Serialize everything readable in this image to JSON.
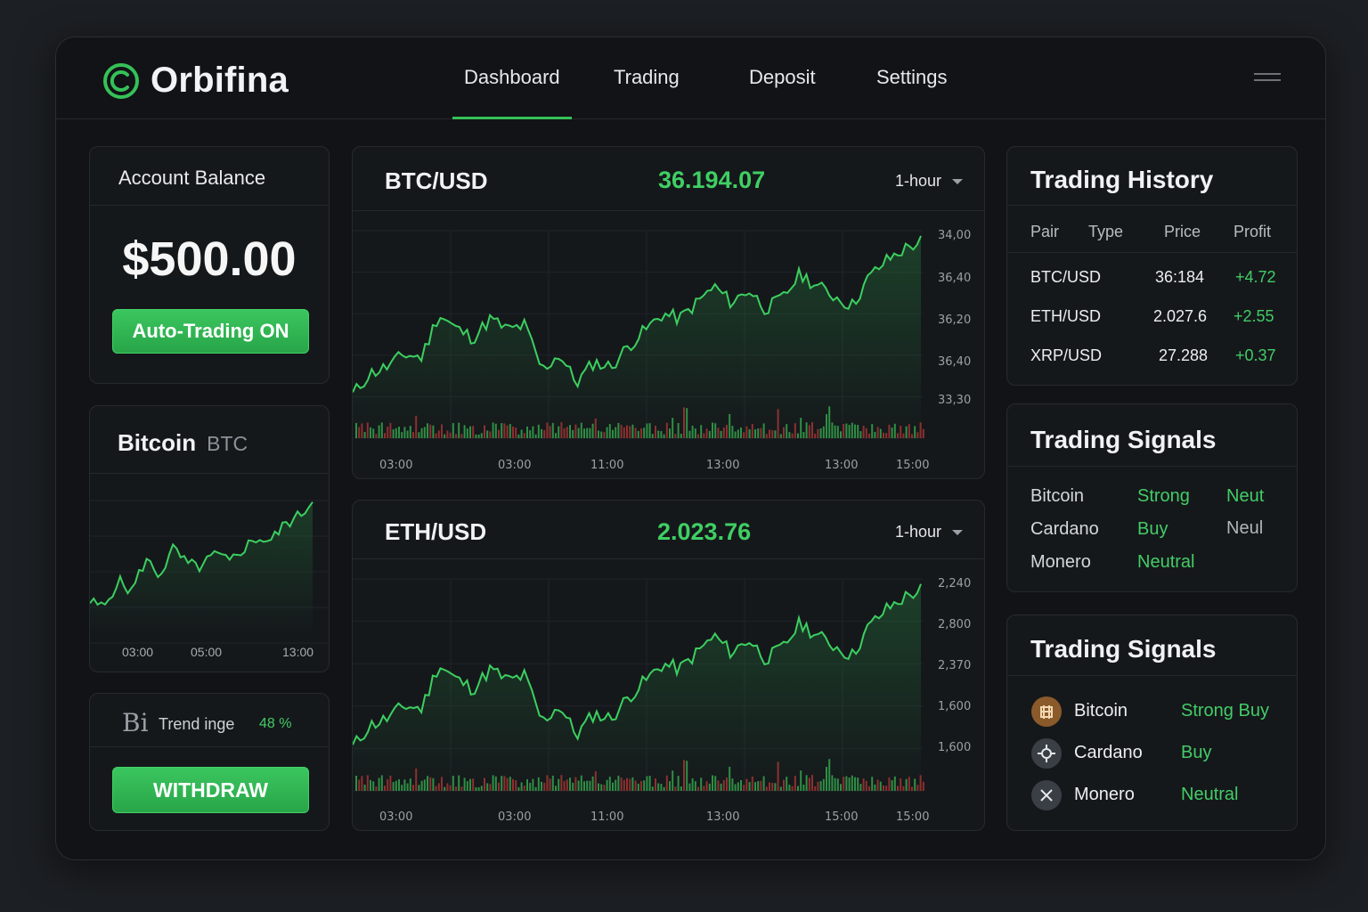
{
  "app": {
    "name": "Orbifina",
    "nav": [
      {
        "label": "Dashboard",
        "active": true
      },
      {
        "label": "Trading",
        "active": false
      },
      {
        "label": "Deposit",
        "active": false
      },
      {
        "label": "Settings",
        "active": false
      }
    ]
  },
  "account": {
    "title": "Account Balance",
    "balance": "$500.00",
    "auto_trading_label": "Auto-Trading ON"
  },
  "bitcoin_card": {
    "title": "Bitcoin",
    "ticker": "BTC",
    "x_labels": [
      "03:00",
      "05:00",
      "13:00"
    ]
  },
  "trend": {
    "icon_text": "Bi",
    "label": "Trend inge",
    "value": "48 %",
    "withdraw_label": "WITHDRAW"
  },
  "btc_chart": {
    "pair": "BTC/USD",
    "price": "36.194.07",
    "timeframe": "1-hour",
    "y_labels": [
      "34,00",
      "36,40",
      "36,20",
      "36,40",
      "33,30"
    ],
    "x_labels": [
      "03:00",
      "03:00",
      "11:00",
      "13:00",
      "13:00",
      "15:00"
    ]
  },
  "eth_chart": {
    "pair": "ETH/USD",
    "price": "2.023.76",
    "timeframe": "1-hour",
    "y_labels": [
      "2,240",
      "2,800",
      "2,370",
      "1,600",
      "1,600"
    ],
    "x_labels": [
      "03:00",
      "03:00",
      "11:00",
      "13:00",
      "15:00",
      "15:00"
    ]
  },
  "history": {
    "title": "Trading History",
    "headers": [
      "Pair",
      "Type",
      "Price",
      "Profit"
    ],
    "rows": [
      {
        "pair": "BTC/USD",
        "price": "36:184",
        "profit": "+4.72"
      },
      {
        "pair": "ETH/USD",
        "price": "2.027.6",
        "profit": "+2.55"
      },
      {
        "pair": "XRP/USD",
        "price": "27.288",
        "profit": "+0.37"
      }
    ]
  },
  "signals1": {
    "title": "Trading Signals",
    "rows": [
      {
        "coin": "Bitcoin",
        "signal": "Strong",
        "extra": "Neut"
      },
      {
        "coin": "Cardano",
        "signal": "Buy",
        "extra": "Neul"
      },
      {
        "coin": "Monero",
        "signal": "Neutral",
        "extra": ""
      }
    ]
  },
  "signals2": {
    "title": "Trading Signals",
    "rows": [
      {
        "coin": "Bitcoin",
        "signal": "Strong Buy",
        "icon": "bitcoin-icon"
      },
      {
        "coin": "Cardano",
        "signal": "Buy",
        "icon": "cardano-icon"
      },
      {
        "coin": "Monero",
        "signal": "Neutral",
        "icon": "monero-icon"
      }
    ]
  },
  "colors": {
    "accent": "#35c158",
    "price_green": "#3fcf63",
    "background": "#111316",
    "volume_up": "#2f8f45",
    "volume_down": "#8e2f2f"
  }
}
